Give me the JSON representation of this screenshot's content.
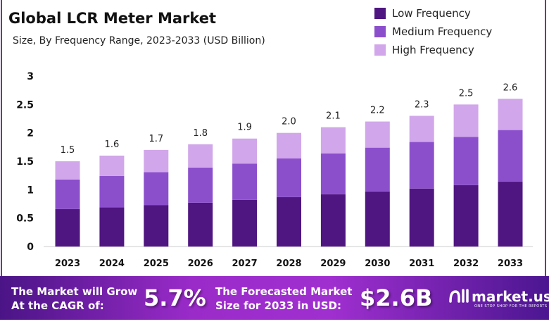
{
  "chart_data": {
    "type": "bar",
    "stacked": true,
    "title": "Global LCR Meter Market",
    "subtitle": "Size, By Frequency Range, 2023-2033  (USD Billion)",
    "categories": [
      "2023",
      "2024",
      "2025",
      "2026",
      "2027",
      "2028",
      "2029",
      "2030",
      "2031",
      "2032",
      "2033"
    ],
    "series": [
      {
        "name": "Low Frequency",
        "color": "#4f1580",
        "values": [
          0.66,
          0.69,
          0.73,
          0.77,
          0.82,
          0.87,
          0.92,
          0.97,
          1.02,
          1.08,
          1.14
        ]
      },
      {
        "name": "Medium Frequency",
        "color": "#8b4fcc",
        "values": [
          0.52,
          0.55,
          0.58,
          0.62,
          0.64,
          0.68,
          0.72,
          0.77,
          0.82,
          0.85,
          0.91
        ]
      },
      {
        "name": "High Frequency",
        "color": "#d1a6ea",
        "values": [
          0.32,
          0.36,
          0.39,
          0.41,
          0.44,
          0.45,
          0.46,
          0.46,
          0.46,
          0.57,
          0.55
        ]
      }
    ],
    "totals_labels": [
      "1.5",
      "1.6",
      "1.7",
      "1.8",
      "1.9",
      "2.0",
      "2.1",
      "2.2",
      "2.3",
      "2.5",
      "2.6"
    ],
    "yticks": [
      "0",
      "0.5",
      "1",
      "1.5",
      "2",
      "2.5",
      "3"
    ],
    "ylim": [
      0,
      3
    ],
    "grid": false,
    "legend": "top-right"
  },
  "banner": {
    "cagr_label_1": "The Market will Grow",
    "cagr_label_2": "At the CAGR of:",
    "cagr_value": "5.7%",
    "forecast_label_1": "The Forecasted Market",
    "forecast_label_2": "Size for 2033 in USD:",
    "forecast_value": "$2.6B",
    "logo_name": "market.us",
    "logo_tagline": "ONE STOP SHOP FOR THE REPORTS"
  }
}
